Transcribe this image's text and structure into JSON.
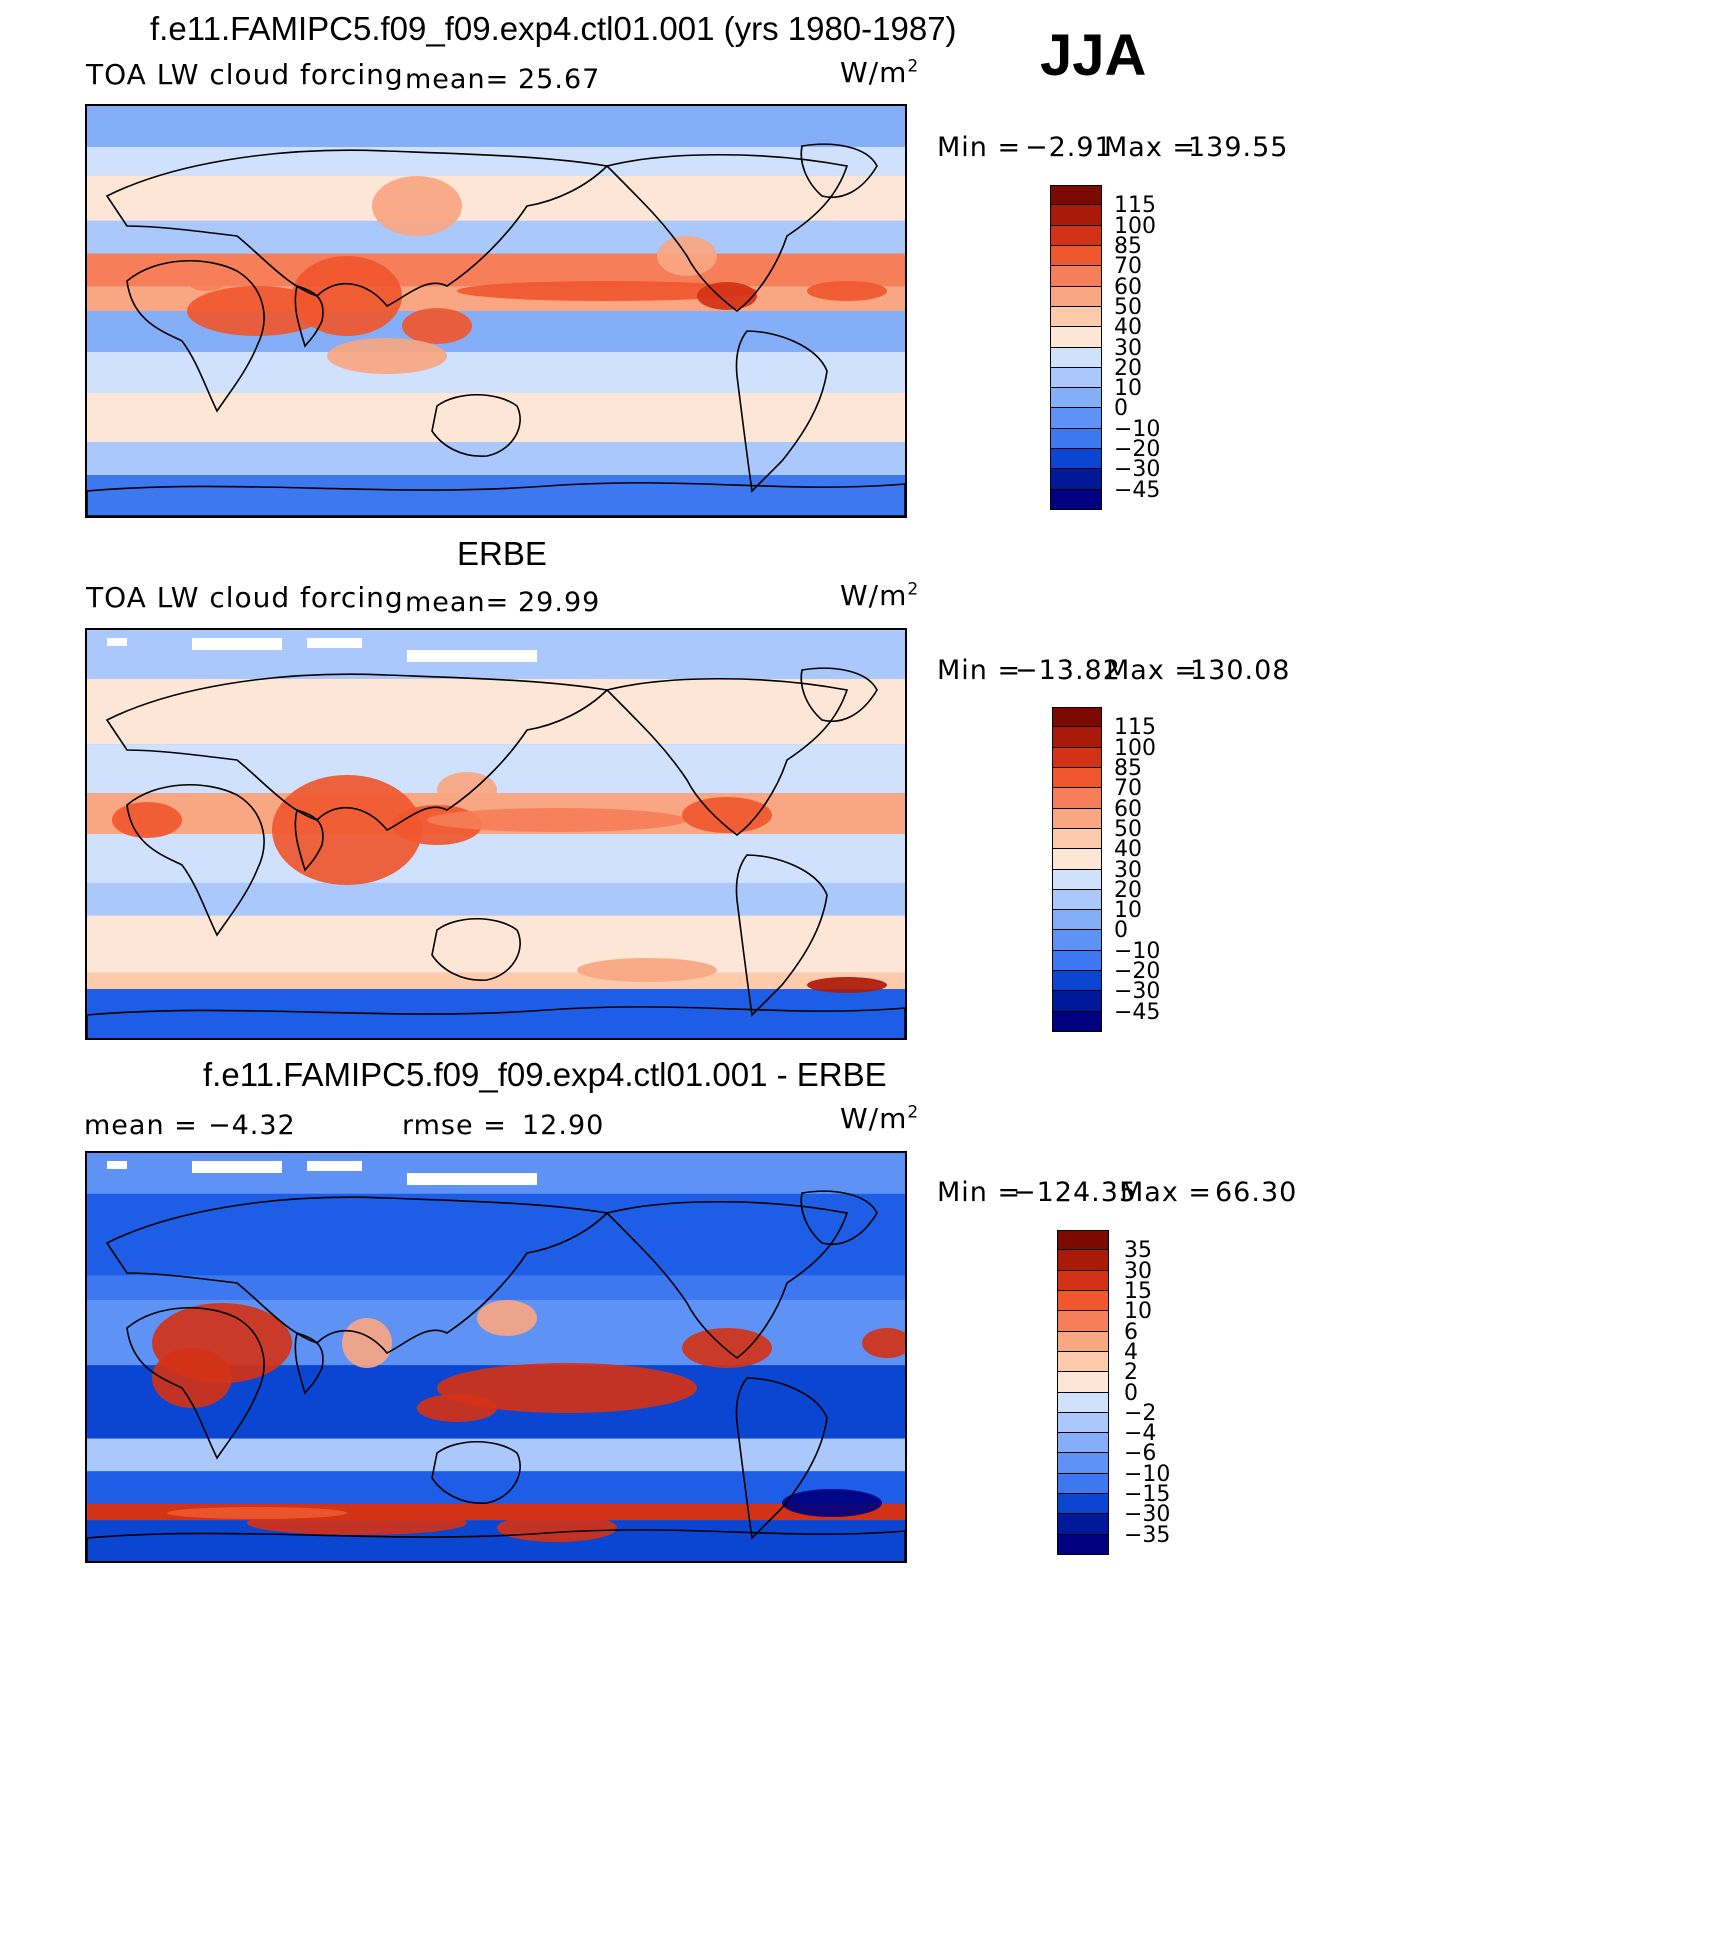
{
  "season": "JJA",
  "panels": [
    {
      "title": "f.e11.FAMIPC5.f09_f09.exp4.ctl01.001 (yrs 1980-1987)",
      "variable": "TOA LW cloud forcing",
      "stat1_label": "mean=",
      "stat1_value": "25.67",
      "stat2_label": "",
      "stat2_value": "",
      "units": "W/m",
      "units_sup": "2",
      "min_label": "Min =",
      "min_value": "−2.91",
      "max_label": "Max =",
      "max_value": "139.55",
      "colorbar_ticks": [
        "115",
        "100",
        "85",
        "70",
        "60",
        "50",
        "40",
        "30",
        "20",
        "10",
        "0",
        "−10",
        "−20",
        "−30",
        "−45"
      ]
    },
    {
      "title": "ERBE",
      "variable": "TOA LW cloud forcing",
      "stat1_label": "mean=",
      "stat1_value": "29.99",
      "stat2_label": "",
      "stat2_value": "",
      "units": "W/m",
      "units_sup": "2",
      "min_label": "Min =",
      "min_value": "−13.82",
      "max_label": "Max =",
      "max_value": "130.08",
      "colorbar_ticks": [
        "115",
        "100",
        "85",
        "70",
        "60",
        "50",
        "40",
        "30",
        "20",
        "10",
        "0",
        "−10",
        "−20",
        "−30",
        "−45"
      ]
    },
    {
      "title": "f.e11.FAMIPC5.f09_f09.exp4.ctl01.001 - ERBE",
      "variable": "",
      "stat1_label": "mean =",
      "stat1_value": "−4.32",
      "stat2_label": "rmse =",
      "stat2_value": "12.90",
      "units": "W/m",
      "units_sup": "2",
      "min_label": "Min =",
      "min_value": "−124.35",
      "max_label": "Max =",
      "max_value": "66.30",
      "colorbar_ticks": [
        "35",
        "30",
        "15",
        "10",
        "6",
        "4",
        "2",
        "0",
        "−2",
        "−4",
        "−6",
        "−10",
        "−15",
        "−30",
        "−35"
      ]
    }
  ],
  "colors": {
    "scale": [
      "#000080",
      "#00189a",
      "#0030b8",
      "#0a46d2",
      "#1e5ee6",
      "#3d78f0",
      "#5e93f5",
      "#84aef8",
      "#aac8fb",
      "#cfe1fc",
      "#fde6d6",
      "#fdcaac",
      "#f9a682",
      "#f67e58",
      "#f0572e",
      "#d43216",
      "#aa1a08",
      "#7a0a02"
    ],
    "land_outline": "#000000",
    "missing": "#ffffff"
  }
}
